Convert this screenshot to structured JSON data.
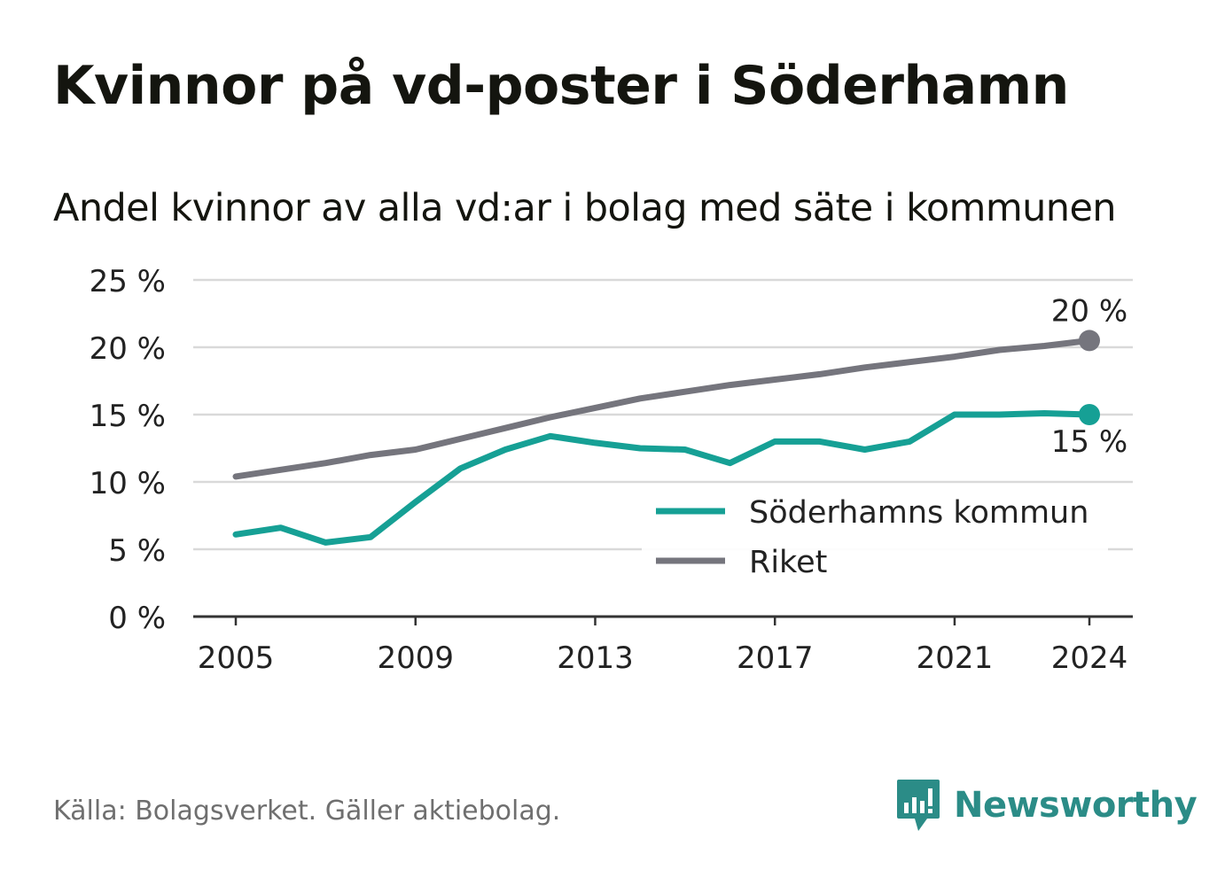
{
  "title": "Kvinnor på vd-poster i Söderhamn",
  "subtitle": "Andel kvinnor av alla vd:ar i bolag med säte i kommunen",
  "source": "Källa: Bolagsverket. Gäller aktiebolag.",
  "brand": "Newsworthy",
  "colors": {
    "soderhamn": "#16a095",
    "riket": "#75757d",
    "grid": "#d9d9d9",
    "axis": "#333333",
    "brand": "#2b8c87"
  },
  "chart_data": {
    "type": "line",
    "x": [
      2005,
      2006,
      2007,
      2008,
      2009,
      2010,
      2011,
      2012,
      2013,
      2014,
      2015,
      2016,
      2017,
      2018,
      2019,
      2020,
      2021,
      2022,
      2023,
      2024
    ],
    "series": [
      {
        "name": "Söderhamns kommun",
        "color": "#16a095",
        "values": [
          6.1,
          6.6,
          5.5,
          5.9,
          8.5,
          11.0,
          12.4,
          13.4,
          12.9,
          12.5,
          12.4,
          11.4,
          13.0,
          13.0,
          12.4,
          13.0,
          15.0,
          15.0,
          15.1,
          15.0
        ]
      },
      {
        "name": "Riket",
        "color": "#75757d",
        "values": [
          10.4,
          10.9,
          11.4,
          12.0,
          12.4,
          13.2,
          14.0,
          14.8,
          15.5,
          16.2,
          16.7,
          17.2,
          17.6,
          18.0,
          18.5,
          18.9,
          19.3,
          19.8,
          20.1,
          20.5
        ]
      }
    ],
    "ylim": [
      0,
      25
    ],
    "yticks": [
      0,
      5,
      10,
      15,
      20,
      25
    ],
    "ytick_labels": [
      "0 %",
      "5 %",
      "10 %",
      "15 %",
      "20 %",
      "25 %"
    ],
    "xticks": [
      2005,
      2009,
      2013,
      2017,
      2021,
      2024
    ],
    "xtick_labels": [
      "2005",
      "2009",
      "2013",
      "2017",
      "2021",
      "2024"
    ],
    "end_labels": {
      "riket": "20 %",
      "soderhamn": "15 %"
    },
    "grid": true,
    "legend": "bottom-right"
  }
}
